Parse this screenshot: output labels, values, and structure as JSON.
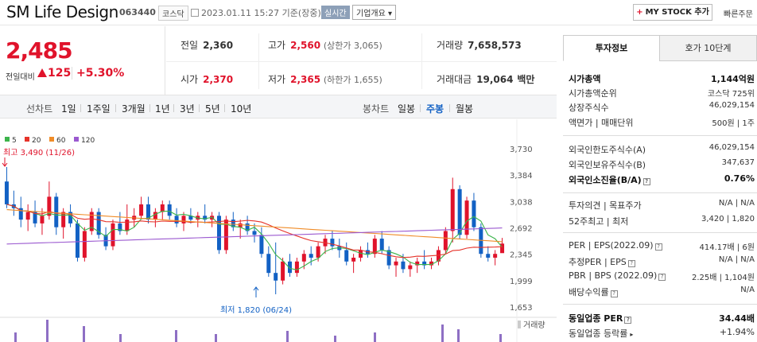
{
  "header": {
    "company_name": "SM Life Design",
    "code": "063440",
    "market": "코스닥",
    "datetime": "2023.01.11 15:27 기준(장중)",
    "live_label": "실시간",
    "overview_label": "기업개요",
    "mystock_label": "MY STOCK 추가",
    "quick_order_label": "빠른주문"
  },
  "price": {
    "current": "2,485",
    "change_label": "전일대비",
    "change": "125",
    "change_pct": "+5.30%"
  },
  "quote": {
    "prev_close_label": "전일",
    "prev_close": "2,360",
    "high_label": "고가",
    "high": "2,560",
    "upper_limit": "(상한가 3,065)",
    "volume_label": "거래량",
    "volume": "7,658,573",
    "open_label": "시가",
    "open": "2,370",
    "low_label": "저가",
    "low": "2,365",
    "lower_limit": "(하한가 1,655)",
    "trade_value_label": "거래대금",
    "trade_value": "19,064",
    "trade_value_unit": "백만"
  },
  "periods": {
    "line_chart_label": "선차트",
    "line_items": [
      "1일",
      "1주일",
      "3개월",
      "1년",
      "3년",
      "5년",
      "10년"
    ],
    "candle_chart_label": "봉차트",
    "candle_items": [
      "일봉",
      "주봉",
      "월봉"
    ],
    "candle_active": "주봉"
  },
  "chart_data": {
    "type": "candlestick",
    "legend": [
      {
        "name": "5",
        "color": "#3cb44b"
      },
      {
        "name": "20",
        "color": "#e6332a"
      },
      {
        "name": "60",
        "color": "#f08c28"
      },
      {
        "name": "120",
        "color": "#9b59d0"
      }
    ],
    "y_ticks": [
      "3,730",
      "3,384",
      "3,038",
      "2,692",
      "2,345",
      "1,999",
      "1,653"
    ],
    "ylim": [
      1653,
      3730
    ],
    "high_annotation": "최고 3,490 (11/26)",
    "low_annotation": "최저 1,820 (06/24)",
    "volume_label": "거래량",
    "candles": [
      [
        3300,
        3490,
        2950,
        3000,
        0
      ],
      [
        3000,
        3180,
        2850,
        2950,
        0
      ],
      [
        2950,
        3100,
        2700,
        2800,
        0
      ],
      [
        2800,
        3000,
        2650,
        2900,
        1
      ],
      [
        2900,
        3050,
        2700,
        2750,
        0
      ],
      [
        2750,
        2950,
        2600,
        2850,
        1
      ],
      [
        2850,
        3300,
        2800,
        3100,
        1
      ],
      [
        3100,
        3150,
        2600,
        2700,
        0
      ],
      [
        2700,
        2950,
        2550,
        2900,
        1
      ],
      [
        2900,
        3000,
        2700,
        2750,
        0
      ],
      [
        2750,
        2800,
        2250,
        2300,
        0
      ],
      [
        2300,
        2700,
        2250,
        2650,
        1
      ],
      [
        2650,
        2950,
        2600,
        2900,
        1
      ],
      [
        2900,
        2950,
        2550,
        2600,
        0
      ],
      [
        2600,
        2700,
        2400,
        2450,
        0
      ],
      [
        2450,
        2800,
        2400,
        2750,
        1
      ],
      [
        2750,
        2900,
        2600,
        2650,
        0
      ],
      [
        2650,
        3000,
        2600,
        2800,
        1
      ],
      [
        2800,
        2950,
        2700,
        2850,
        1
      ],
      [
        2850,
        3100,
        2800,
        3000,
        1
      ],
      [
        3000,
        3100,
        2750,
        2800,
        0
      ],
      [
        2800,
        2950,
        2700,
        2900,
        1
      ],
      [
        2900,
        3050,
        2800,
        3000,
        1
      ],
      [
        3000,
        3050,
        2800,
        2850,
        0
      ],
      [
        2850,
        2950,
        2700,
        2750,
        0
      ],
      [
        2750,
        2900,
        2650,
        2850,
        1
      ],
      [
        2850,
        2950,
        2750,
        2800,
        0
      ],
      [
        2800,
        2900,
        2700,
        2850,
        1
      ],
      [
        2850,
        3000,
        2750,
        2800,
        0
      ],
      [
        2800,
        2900,
        2700,
        2850,
        1
      ],
      [
        2850,
        2900,
        2350,
        2400,
        0
      ],
      [
        2400,
        2850,
        2350,
        2800,
        1
      ],
      [
        2800,
        2900,
        2650,
        2700,
        0
      ],
      [
        2700,
        2800,
        2550,
        2750,
        1
      ],
      [
        2750,
        2850,
        2600,
        2650,
        0
      ],
      [
        2650,
        2750,
        2500,
        2600,
        0
      ],
      [
        2600,
        2700,
        2300,
        2350,
        0
      ],
      [
        2350,
        2450,
        2050,
        2100,
        0
      ],
      [
        2100,
        2500,
        1820,
        2000,
        0
      ],
      [
        2000,
        2300,
        1950,
        2250,
        1
      ],
      [
        2250,
        2350,
        2050,
        2100,
        0
      ],
      [
        2100,
        2300,
        2050,
        2250,
        1
      ],
      [
        2250,
        2400,
        2150,
        2350,
        1
      ],
      [
        2350,
        2450,
        2200,
        2300,
        0
      ],
      [
        2300,
        2500,
        2250,
        2450,
        1
      ],
      [
        2450,
        2600,
        2350,
        2550,
        1
      ],
      [
        2550,
        2650,
        2400,
        2450,
        0
      ],
      [
        2450,
        2550,
        2300,
        2400,
        0
      ],
      [
        2400,
        2500,
        2200,
        2250,
        0
      ],
      [
        2250,
        2350,
        2100,
        2300,
        1
      ],
      [
        2300,
        2450,
        2250,
        2400,
        1
      ],
      [
        2400,
        2500,
        2300,
        2350,
        0
      ],
      [
        2350,
        2600,
        2300,
        2550,
        1
      ],
      [
        2550,
        2650,
        2350,
        2400,
        0
      ],
      [
        2400,
        2450,
        2150,
        2200,
        0
      ],
      [
        2200,
        2300,
        2050,
        2250,
        1
      ],
      [
        2250,
        2350,
        2100,
        2150,
        0
      ],
      [
        2150,
        2250,
        2050,
        2200,
        1
      ],
      [
        2200,
        2300,
        2100,
        2250,
        1
      ],
      [
        2250,
        2400,
        2150,
        2200,
        0
      ],
      [
        2200,
        2300,
        2150,
        2250,
        1
      ],
      [
        2250,
        2450,
        2200,
        2400,
        1
      ],
      [
        2400,
        2700,
        2350,
        2650,
        1
      ],
      [
        2650,
        3350,
        2500,
        3200,
        1
      ],
      [
        3200,
        3250,
        2550,
        2600,
        0
      ],
      [
        2600,
        3100,
        2550,
        3050,
        1
      ],
      [
        3050,
        3150,
        2650,
        2700,
        0
      ],
      [
        2700,
        2750,
        2300,
        2350,
        0
      ],
      [
        2350,
        2450,
        2250,
        2300,
        0
      ],
      [
        2300,
        2400,
        2200,
        2350,
        1
      ],
      [
        2360,
        2560,
        2365,
        2485,
        1
      ]
    ]
  },
  "invest": {
    "tab_active": "투자정보",
    "tab_other": "호가 10단계",
    "market_cap_label": "시가총액",
    "market_cap": "1,144억원",
    "market_cap_rank_label": "시가총액순위",
    "market_cap_rank": "코스닥 725위",
    "shares_label": "상장주식수",
    "shares": "46,029,154",
    "par_label": "액면가 | 매매단위",
    "par": "500원 | 1주",
    "foreign_limit_label": "외국인한도주식수(A)",
    "foreign_limit": "46,029,154",
    "foreign_hold_label": "외국인보유주식수(B)",
    "foreign_hold": "347,637",
    "foreign_ratio_label": "외국인소진율(B/A)",
    "foreign_ratio": "0.76%",
    "opinion_label": "투자의견 | 목표주가",
    "opinion": "N/A | N/A",
    "week52_label": "52주최고 | 최저",
    "week52": "3,420 | 1,820",
    "per_label": "PER | EPS(2022.09)",
    "per": "414.17배 | 6원",
    "est_per_label": "추정PER | EPS",
    "est_per": "N/A | N/A",
    "pbr_label": "PBR | BPS (2022.09)",
    "pbr": "2.25배 | 1,104원",
    "div_label": "배당수익률",
    "div": "N/A",
    "sector_per_label": "동일업종 PER",
    "sector_per": "34.44배",
    "sector_chg_label": "동일업종 등락률",
    "sector_chg": "+1.94%"
  }
}
